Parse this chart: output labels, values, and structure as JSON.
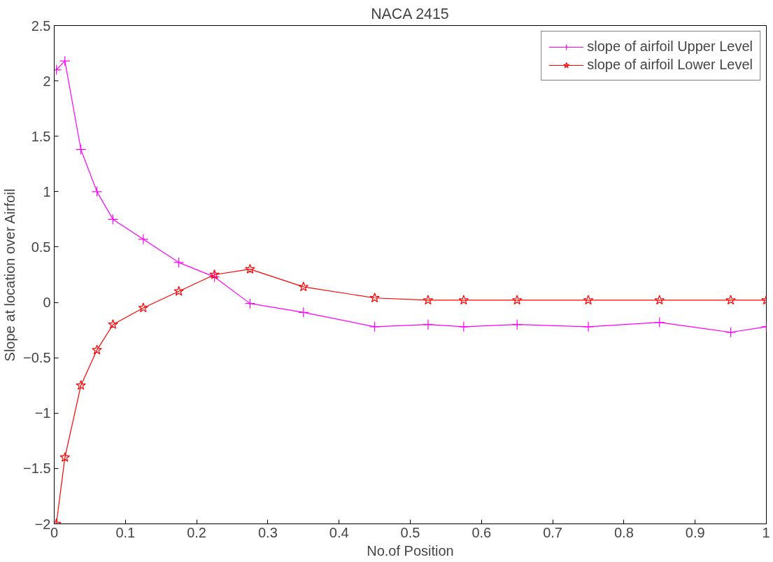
{
  "chart_data": {
    "type": "line",
    "title": "NACA 2415",
    "xlabel": "No.of Position",
    "ylabel": "Slope at location over Airfoil",
    "x": [
      0.003,
      0.015,
      0.0375,
      0.06,
      0.0825,
      0.125,
      0.175,
      0.225,
      0.275,
      0.35,
      0.45,
      0.525,
      0.575,
      0.65,
      0.75,
      0.85,
      0.95,
      1.0
    ],
    "series": [
      {
        "name": "slope of airfoil Upper Level",
        "color": "#ff00ff",
        "marker": "cross",
        "values": [
          2.1,
          2.18,
          1.38,
          1.0,
          0.75,
          0.57,
          0.36,
          0.23,
          -0.01,
          -0.09,
          -0.22,
          -0.2,
          -0.22,
          -0.2,
          -0.22,
          -0.18,
          -0.27,
          -0.22
        ]
      },
      {
        "name": "slope of airfoil Lower Level",
        "color": "#ff0000",
        "marker": "star",
        "values": [
          -2.0,
          -1.4,
          -0.75,
          -0.43,
          -0.2,
          -0.05,
          0.1,
          0.25,
          0.3,
          0.14,
          0.04,
          0.02,
          0.02,
          0.02,
          0.02,
          0.02,
          0.02,
          0.02
        ]
      }
    ],
    "xlim": [
      0,
      1
    ],
    "xticks": [
      0,
      0.1,
      0.2,
      0.3,
      0.4,
      0.5,
      0.6,
      0.7,
      0.8,
      0.9,
      1
    ],
    "ylim": [
      -2,
      2.5
    ],
    "yticks": [
      -2,
      -1.5,
      -1,
      -0.5,
      0,
      0.5,
      1,
      1.5,
      2,
      2.5
    ],
    "grid": false,
    "legend": "top right",
    "line_style": "solid"
  }
}
